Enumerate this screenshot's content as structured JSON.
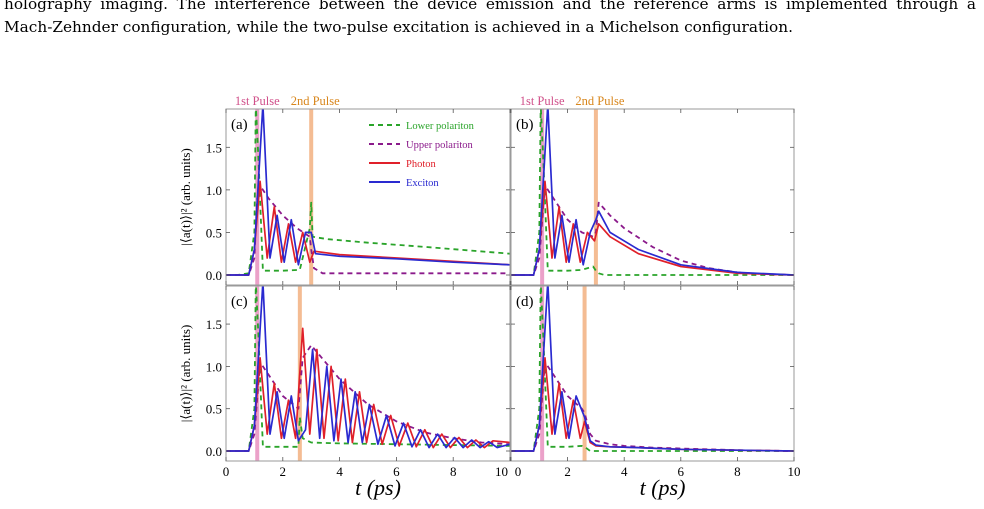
{
  "text": {
    "line1": "holography imaging.  The interference between the device emission and the reference arms is implemented through a",
    "line2": "Mach-Zehnder configuration, while the two-pulse excitation is achieved in a Michelson configuration."
  },
  "figure": {
    "pulse1_label": "1st Pulse",
    "pulse2_label": "2nd Pulse",
    "ylabel": "|⟨a(t)⟩|² (arb. units)",
    "xlabel": "t (ps)",
    "panel_labels": [
      "(a)",
      "(b)",
      "(c)",
      "(d)"
    ],
    "xtick_labels": [
      "0",
      "2",
      "4",
      "6",
      "8",
      "10"
    ],
    "ytick_labels": [
      "0.0",
      "0.5",
      "1.0",
      "1.5"
    ],
    "colors": {
      "lower": "#2aa42a",
      "upper": "#8b1a8b",
      "photon": "#e0202a",
      "exciton": "#2a2ad0",
      "pulse1": "#e890c0",
      "pulse2": "#f2b080",
      "pulse1_text": "#d0508a",
      "pulse2_text": "#d8861c"
    }
  },
  "chart_data": [
    {
      "type": "line",
      "panel": "(a)",
      "xlim": [
        0,
        10
      ],
      "ylim": [
        0,
        1.95
      ],
      "pulses": [
        1.1,
        3.0
      ],
      "legend": {
        "placement": "top-right",
        "entries": [
          "Lower polariton",
          "Upper polariton",
          "Photon",
          "Exciton"
        ]
      },
      "series": [
        {
          "name": "Lower polariton",
          "x": [
            0,
            0.4,
            0.8,
            1.0,
            1.05,
            1.15,
            1.3,
            1.6,
            2.0,
            2.6,
            2.95,
            3.0,
            3.05,
            3.2,
            3.6,
            5.0,
            7.0,
            10.0
          ],
          "y": [
            0,
            0,
            0.02,
            0.5,
            2.0,
            1.3,
            0.05,
            0.05,
            0.05,
            0.06,
            0.55,
            0.85,
            0.45,
            0.44,
            0.42,
            0.38,
            0.33,
            0.25
          ]
        },
        {
          "name": "Upper polariton",
          "x": [
            0,
            0.8,
            1.0,
            1.1,
            1.2,
            1.5,
            2.0,
            2.5,
            2.95,
            3.0,
            3.1,
            3.4,
            10.0
          ],
          "y": [
            0,
            0,
            0.2,
            0.9,
            1.05,
            0.9,
            0.7,
            0.55,
            0.45,
            0.3,
            0.08,
            0.02,
            0.02
          ]
        },
        {
          "name": "Photon",
          "x": [
            0,
            0.8,
            1.0,
            1.2,
            1.45,
            1.7,
            1.95,
            2.2,
            2.45,
            2.7,
            2.95,
            3.1,
            4.0,
            6.0,
            8.0,
            10.0
          ],
          "y": [
            0,
            0,
            0.3,
            1.1,
            0.2,
            0.8,
            0.15,
            0.6,
            0.15,
            0.5,
            0.15,
            0.28,
            0.24,
            0.2,
            0.16,
            0.12
          ]
        },
        {
          "name": "Exciton",
          "x": [
            0,
            0.8,
            1.0,
            1.3,
            1.55,
            1.8,
            2.05,
            2.3,
            2.55,
            2.8,
            3.0,
            3.15,
            4.0,
            6.0,
            8.0,
            10.0
          ],
          "y": [
            0,
            0,
            0.3,
            2.0,
            0.2,
            0.7,
            0.15,
            0.65,
            0.12,
            0.5,
            0.5,
            0.25,
            0.22,
            0.19,
            0.15,
            0.12
          ]
        }
      ]
    },
    {
      "type": "line",
      "panel": "(b)",
      "xlim": [
        0,
        10
      ],
      "ylim": [
        0,
        1.95
      ],
      "pulses": [
        1.1,
        3.0
      ],
      "series": [
        {
          "name": "Lower polariton",
          "x": [
            0,
            0.8,
            1.0,
            1.05,
            1.15,
            1.3,
            2.0,
            2.5,
            2.9,
            3.0,
            3.1,
            3.3,
            10.0
          ],
          "y": [
            0,
            0,
            0.5,
            2.0,
            1.3,
            0.05,
            0.05,
            0.06,
            0.1,
            0.05,
            0.02,
            0.0,
            0.0
          ]
        },
        {
          "name": "Upper polariton",
          "x": [
            0,
            0.8,
            1.0,
            1.2,
            1.5,
            2.0,
            2.5,
            2.9,
            3.0,
            3.1,
            3.5,
            4.0,
            5.0,
            6.0,
            7.0,
            8.0,
            9.0,
            10.0
          ],
          "y": [
            0,
            0,
            0.2,
            1.05,
            0.9,
            0.65,
            0.5,
            0.45,
            0.5,
            0.85,
            0.7,
            0.55,
            0.33,
            0.17,
            0.08,
            0.03,
            0.01,
            0.0
          ]
        },
        {
          "name": "Photon",
          "x": [
            0,
            0.8,
            1.0,
            1.2,
            1.45,
            1.7,
            1.95,
            2.2,
            2.45,
            2.7,
            2.95,
            3.1,
            3.5,
            4.5,
            6.0,
            8.0,
            10.0
          ],
          "y": [
            0,
            0,
            0.3,
            1.1,
            0.2,
            0.8,
            0.15,
            0.6,
            0.15,
            0.5,
            0.4,
            0.6,
            0.45,
            0.25,
            0.1,
            0.02,
            0.0
          ]
        },
        {
          "name": "Exciton",
          "x": [
            0,
            0.8,
            1.0,
            1.3,
            1.55,
            1.8,
            2.05,
            2.3,
            2.55,
            2.8,
            3.0,
            3.1,
            3.5,
            4.5,
            6.0,
            8.0,
            10.0
          ],
          "y": [
            0,
            0,
            0.3,
            2.0,
            0.2,
            0.7,
            0.15,
            0.65,
            0.12,
            0.5,
            0.65,
            0.75,
            0.5,
            0.3,
            0.12,
            0.03,
            0.0
          ]
        }
      ]
    },
    {
      "type": "line",
      "panel": "(c)",
      "xlim": [
        0,
        10
      ],
      "ylim": [
        0,
        1.95
      ],
      "pulses": [
        1.1,
        2.6
      ],
      "series": [
        {
          "name": "Lower polariton",
          "x": [
            0,
            0.8,
            1.0,
            1.05,
            1.15,
            1.3,
            2.0,
            2.55,
            2.6,
            2.7,
            3.0,
            4.0,
            6.0,
            8.0,
            10.0
          ],
          "y": [
            0,
            0,
            0.5,
            2.0,
            1.3,
            0.05,
            0.05,
            0.05,
            0.4,
            0.15,
            0.1,
            0.09,
            0.08,
            0.07,
            0.06
          ]
        },
        {
          "name": "Upper polariton",
          "x": [
            0,
            0.8,
            1.0,
            1.2,
            1.5,
            2.0,
            2.55,
            2.7,
            3.0,
            3.5,
            4.0,
            5.0,
            6.0,
            7.0,
            8.0,
            9.0,
            10.0
          ],
          "y": [
            0,
            0,
            0.2,
            1.05,
            0.9,
            0.65,
            0.5,
            1.1,
            1.25,
            1.05,
            0.85,
            0.55,
            0.35,
            0.22,
            0.15,
            0.1,
            0.08
          ]
        },
        {
          "name": "Photon",
          "x": [
            0,
            0.8,
            1.0,
            1.2,
            1.45,
            1.7,
            1.95,
            2.2,
            2.45,
            2.7,
            2.95,
            3.2,
            3.45,
            3.7,
            3.95,
            4.2,
            4.45,
            4.7,
            4.95,
            5.2,
            5.5,
            5.8,
            6.1,
            6.4,
            6.7,
            7.0,
            7.3,
            7.6,
            7.9,
            8.2,
            8.5,
            8.8,
            9.1,
            9.4,
            10.0
          ],
          "y": [
            0,
            0,
            0.3,
            1.1,
            0.2,
            0.8,
            0.15,
            0.6,
            0.15,
            1.45,
            0.2,
            1.2,
            0.15,
            1.0,
            0.12,
            0.85,
            0.1,
            0.7,
            0.1,
            0.55,
            0.08,
            0.42,
            0.06,
            0.33,
            0.05,
            0.25,
            0.04,
            0.2,
            0.04,
            0.16,
            0.04,
            0.13,
            0.04,
            0.12,
            0.1
          ]
        },
        {
          "name": "Exciton",
          "x": [
            0,
            0.8,
            1.0,
            1.3,
            1.55,
            1.8,
            2.05,
            2.3,
            2.55,
            2.8,
            3.05,
            3.3,
            3.55,
            3.8,
            4.05,
            4.3,
            4.55,
            4.8,
            5.05,
            5.35,
            5.65,
            5.95,
            6.25,
            6.55,
            6.85,
            7.15,
            7.45,
            7.75,
            8.05,
            8.35,
            8.65,
            8.95,
            9.25,
            9.55,
            10.0
          ],
          "y": [
            0,
            0,
            0.3,
            2.0,
            0.2,
            0.7,
            0.15,
            0.65,
            0.12,
            0.25,
            1.2,
            0.15,
            1.0,
            0.12,
            0.85,
            0.1,
            0.7,
            0.1,
            0.55,
            0.08,
            0.42,
            0.06,
            0.33,
            0.05,
            0.25,
            0.04,
            0.2,
            0.04,
            0.16,
            0.04,
            0.13,
            0.04,
            0.11,
            0.04,
            0.08
          ]
        }
      ]
    },
    {
      "type": "line",
      "panel": "(d)",
      "xlim": [
        0,
        10
      ],
      "ylim": [
        0,
        1.95
      ],
      "pulses": [
        1.1,
        2.6
      ],
      "series": [
        {
          "name": "Lower polariton",
          "x": [
            0,
            0.8,
            1.0,
            1.05,
            1.15,
            1.3,
            2.0,
            2.5,
            2.6,
            2.8,
            3.2,
            10.0
          ],
          "y": [
            0,
            0,
            0.5,
            2.0,
            1.3,
            0.05,
            0.05,
            0.06,
            0.05,
            0.0,
            0.0,
            0.0
          ]
        },
        {
          "name": "Upper polariton",
          "x": [
            0,
            0.8,
            1.0,
            1.2,
            1.5,
            2.0,
            2.5,
            2.6,
            2.8,
            3.0,
            3.5,
            4.0,
            5.0,
            6.0,
            8.0,
            10.0
          ],
          "y": [
            0,
            0,
            0.2,
            1.05,
            0.9,
            0.65,
            0.5,
            0.45,
            0.2,
            0.12,
            0.08,
            0.06,
            0.04,
            0.03,
            0.01,
            0.0
          ]
        },
        {
          "name": "Photon",
          "x": [
            0,
            0.8,
            1.0,
            1.2,
            1.45,
            1.7,
            1.95,
            2.2,
            2.45,
            2.6,
            2.8,
            3.0,
            3.5,
            4.5,
            6.0,
            8.0,
            10.0
          ],
          "y": [
            0,
            0,
            0.3,
            1.1,
            0.2,
            0.8,
            0.15,
            0.6,
            0.15,
            0.35,
            0.1,
            0.06,
            0.05,
            0.04,
            0.02,
            0.01,
            0.0
          ]
        },
        {
          "name": "Exciton",
          "x": [
            0,
            0.8,
            1.0,
            1.3,
            1.55,
            1.8,
            2.05,
            2.3,
            2.6,
            2.8,
            3.0,
            3.5,
            4.5,
            6.0,
            8.0,
            10.0
          ],
          "y": [
            0,
            0,
            0.3,
            2.0,
            0.2,
            0.7,
            0.15,
            0.65,
            0.4,
            0.12,
            0.07,
            0.05,
            0.04,
            0.02,
            0.01,
            0.0
          ]
        }
      ]
    }
  ]
}
